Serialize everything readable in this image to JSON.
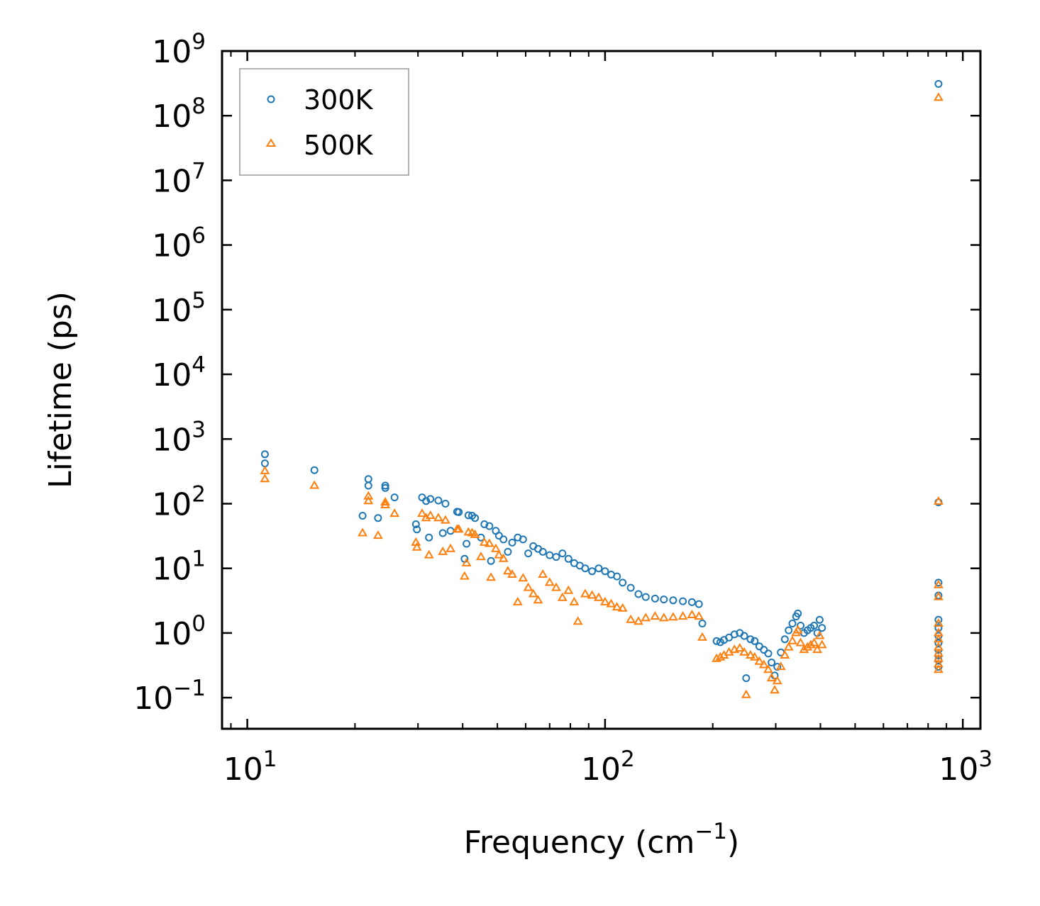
{
  "chart_data": {
    "type": "scatter",
    "xscale": "log",
    "yscale": "log",
    "xlim": [
      8.5,
      1120
    ],
    "ylim": [
      0.033,
      1000000000
    ],
    "xlabel": "Frequency (cm",
    "xlabel_sup": "−1",
    "xlabel_tail": ")",
    "ylabel": "Lifetime (ps)",
    "legend_position": "upper-left",
    "x_ticks": [
      {
        "value": 10,
        "base": "10",
        "exp": "1"
      },
      {
        "value": 100,
        "base": "10",
        "exp": "2"
      },
      {
        "value": 1000,
        "base": "10",
        "exp": "3"
      }
    ],
    "y_ticks": [
      {
        "value": 0.1,
        "base": "10",
        "exp": "−1"
      },
      {
        "value": 1,
        "base": "10",
        "exp": "0"
      },
      {
        "value": 10,
        "base": "10",
        "exp": "1"
      },
      {
        "value": 100,
        "base": "10",
        "exp": "2"
      },
      {
        "value": 1000,
        "base": "10",
        "exp": "3"
      },
      {
        "value": 10000,
        "base": "10",
        "exp": "4"
      },
      {
        "value": 100000,
        "base": "10",
        "exp": "5"
      },
      {
        "value": 1000000,
        "base": "10",
        "exp": "6"
      },
      {
        "value": 10000000,
        "base": "10",
        "exp": "7"
      },
      {
        "value": 100000000,
        "base": "10",
        "exp": "8"
      },
      {
        "value": 1000000000,
        "base": "10",
        "exp": "9"
      }
    ],
    "series": [
      {
        "name": "300K",
        "marker": "circle",
        "color": "#1f77b4",
        "points": [
          [
            11.2,
            580
          ],
          [
            11.2,
            420
          ],
          [
            15.4,
            330
          ],
          [
            21.0,
            65
          ],
          [
            21.8,
            240
          ],
          [
            21.8,
            190
          ],
          [
            23.2,
            60
          ],
          [
            24.3,
            190
          ],
          [
            24.3,
            175
          ],
          [
            25.8,
            125
          ],
          [
            29.6,
            48
          ],
          [
            29.8,
            40
          ],
          [
            30.8,
            125
          ],
          [
            31.6,
            110
          ],
          [
            32.2,
            30
          ],
          [
            32.5,
            118
          ],
          [
            34.2,
            112
          ],
          [
            35.2,
            35
          ],
          [
            35.8,
            100
          ],
          [
            37.0,
            38
          ],
          [
            38.6,
            75
          ],
          [
            39.0,
            74
          ],
          [
            40.5,
            14
          ],
          [
            41.0,
            24
          ],
          [
            41.5,
            66
          ],
          [
            42.5,
            65
          ],
          [
            43.3,
            60
          ],
          [
            45.0,
            30
          ],
          [
            46.0,
            48
          ],
          [
            47.5,
            45
          ],
          [
            48.0,
            13
          ],
          [
            49.5,
            38
          ],
          [
            50.5,
            32
          ],
          [
            52.0,
            28
          ],
          [
            53.5,
            18
          ],
          [
            55.0,
            25
          ],
          [
            57.0,
            30
          ],
          [
            59.0,
            28
          ],
          [
            61.0,
            17
          ],
          [
            63.0,
            22
          ],
          [
            65.0,
            20
          ],
          [
            67.0,
            18
          ],
          [
            70.0,
            16
          ],
          [
            73.0,
            15
          ],
          [
            76.0,
            17
          ],
          [
            79.0,
            14
          ],
          [
            82.0,
            12
          ],
          [
            85.0,
            11
          ],
          [
            88.0,
            10
          ],
          [
            92.0,
            9
          ],
          [
            96.0,
            10
          ],
          [
            100.0,
            9
          ],
          [
            104.0,
            8
          ],
          [
            108.0,
            7.5
          ],
          [
            112.0,
            6
          ],
          [
            118.0,
            5
          ],
          [
            124.0,
            4
          ],
          [
            130.0,
            3.6
          ],
          [
            138.0,
            3.4
          ],
          [
            146.0,
            3.3
          ],
          [
            155.0,
            3.2
          ],
          [
            165.0,
            3.1
          ],
          [
            175.0,
            3.0
          ],
          [
            183.0,
            2.8
          ],
          [
            187.0,
            1.4
          ],
          [
            205.0,
            0.75
          ],
          [
            210.0,
            0.72
          ],
          [
            215.0,
            0.78
          ],
          [
            222.0,
            0.85
          ],
          [
            230.0,
            0.95
          ],
          [
            238.0,
            1.0
          ],
          [
            245.0,
            0.9
          ],
          [
            248.0,
            0.2
          ],
          [
            255.0,
            0.8
          ],
          [
            262.0,
            0.75
          ],
          [
            270.0,
            0.62
          ],
          [
            278.0,
            0.55
          ],
          [
            286.0,
            0.48
          ],
          [
            292.0,
            0.35
          ],
          [
            298.0,
            0.22
          ],
          [
            303.0,
            0.3
          ],
          [
            310.0,
            0.5
          ],
          [
            318.0,
            0.8
          ],
          [
            326.0,
            1.1
          ],
          [
            334.0,
            1.4
          ],
          [
            342.0,
            1.8
          ],
          [
            346.0,
            2.0
          ],
          [
            352.0,
            1.3
          ],
          [
            360.0,
            1.0
          ],
          [
            368.0,
            1.1
          ],
          [
            376.0,
            1.2
          ],
          [
            384.0,
            1.3
          ],
          [
            392.0,
            1.0
          ],
          [
            398.0,
            1.6
          ],
          [
            404.0,
            1.2
          ],
          [
            855.0,
            310000000
          ],
          [
            855.0,
            105
          ],
          [
            855.0,
            6
          ],
          [
            855.0,
            3.8
          ],
          [
            855.0,
            1.6
          ],
          [
            855.0,
            1.2
          ],
          [
            855.0,
            0.9
          ],
          [
            855.0,
            0.7
          ],
          [
            855.0,
            0.55
          ],
          [
            855.0,
            0.45
          ],
          [
            855.0,
            0.38
          ],
          [
            855.0,
            0.3
          ]
        ]
      },
      {
        "name": "500K",
        "marker": "triangle",
        "color": "#ff7f0e",
        "points": [
          [
            11.2,
            320
          ],
          [
            11.2,
            240
          ],
          [
            15.4,
            190
          ],
          [
            21.0,
            35
          ],
          [
            21.8,
            130
          ],
          [
            21.8,
            110
          ],
          [
            23.2,
            32
          ],
          [
            24.3,
            105
          ],
          [
            24.3,
            95
          ],
          [
            25.8,
            70
          ],
          [
            29.6,
            25
          ],
          [
            29.8,
            21
          ],
          [
            30.8,
            70
          ],
          [
            31.6,
            60
          ],
          [
            32.2,
            16
          ],
          [
            32.5,
            65
          ],
          [
            34.2,
            60
          ],
          [
            35.2,
            18
          ],
          [
            35.8,
            55
          ],
          [
            37.0,
            20
          ],
          [
            38.6,
            40
          ],
          [
            39.0,
            40
          ],
          [
            40.5,
            7.5
          ],
          [
            41.0,
            12
          ],
          [
            41.5,
            36
          ],
          [
            42.5,
            35
          ],
          [
            43.3,
            33
          ],
          [
            45.0,
            15
          ],
          [
            46.0,
            25
          ],
          [
            47.5,
            24
          ],
          [
            48.0,
            7.2
          ],
          [
            49.5,
            20
          ],
          [
            50.5,
            16
          ],
          [
            52.0,
            14
          ],
          [
            53.5,
            9
          ],
          [
            55.0,
            8
          ],
          [
            57.0,
            3.0
          ],
          [
            59.0,
            7
          ],
          [
            61.0,
            5
          ],
          [
            63.0,
            4
          ],
          [
            65.0,
            3.2
          ],
          [
            67.0,
            8
          ],
          [
            70.0,
            6
          ],
          [
            73.0,
            5
          ],
          [
            76.0,
            3.5
          ],
          [
            79.0,
            4.5
          ],
          [
            82.0,
            3
          ],
          [
            84.0,
            1.5
          ],
          [
            88.0,
            4
          ],
          [
            92.0,
            3.8
          ],
          [
            96.0,
            3.5
          ],
          [
            100.0,
            3
          ],
          [
            104.0,
            2.8
          ],
          [
            108.0,
            2.5
          ],
          [
            112.0,
            2.4
          ],
          [
            118.0,
            1.6
          ],
          [
            124.0,
            1.5
          ],
          [
            130.0,
            1.7
          ],
          [
            138.0,
            1.8
          ],
          [
            146.0,
            1.7
          ],
          [
            155.0,
            1.75
          ],
          [
            165.0,
            1.8
          ],
          [
            175.0,
            1.9
          ],
          [
            183.0,
            1.8
          ],
          [
            187.0,
            0.85
          ],
          [
            205.0,
            0.4
          ],
          [
            210.0,
            0.42
          ],
          [
            215.0,
            0.45
          ],
          [
            222.0,
            0.5
          ],
          [
            230.0,
            0.55
          ],
          [
            238.0,
            0.58
          ],
          [
            245.0,
            0.5
          ],
          [
            248.0,
            0.11
          ],
          [
            255.0,
            0.45
          ],
          [
            262.0,
            0.42
          ],
          [
            270.0,
            0.36
          ],
          [
            278.0,
            0.32
          ],
          [
            286.0,
            0.27
          ],
          [
            292.0,
            0.2
          ],
          [
            298.0,
            0.13
          ],
          [
            303.0,
            0.18
          ],
          [
            310.0,
            0.3
          ],
          [
            318.0,
            0.45
          ],
          [
            326.0,
            0.6
          ],
          [
            334.0,
            0.75
          ],
          [
            342.0,
            1.0
          ],
          [
            346.0,
            1.1
          ],
          [
            352.0,
            0.7
          ],
          [
            360.0,
            0.55
          ],
          [
            368.0,
            0.6
          ],
          [
            376.0,
            0.65
          ],
          [
            384.0,
            0.7
          ],
          [
            392.0,
            0.55
          ],
          [
            398.0,
            0.9
          ],
          [
            404.0,
            0.65
          ],
          [
            855.0,
            190000000
          ],
          [
            855.0,
            108
          ],
          [
            855.0,
            5.5
          ],
          [
            855.0,
            3.6
          ],
          [
            855.0,
            1.4
          ],
          [
            855.0,
            1.0
          ],
          [
            855.0,
            0.8
          ],
          [
            855.0,
            0.6
          ],
          [
            855.0,
            0.48
          ],
          [
            855.0,
            0.4
          ],
          [
            855.0,
            0.33
          ],
          [
            855.0,
            0.27
          ]
        ]
      }
    ]
  }
}
